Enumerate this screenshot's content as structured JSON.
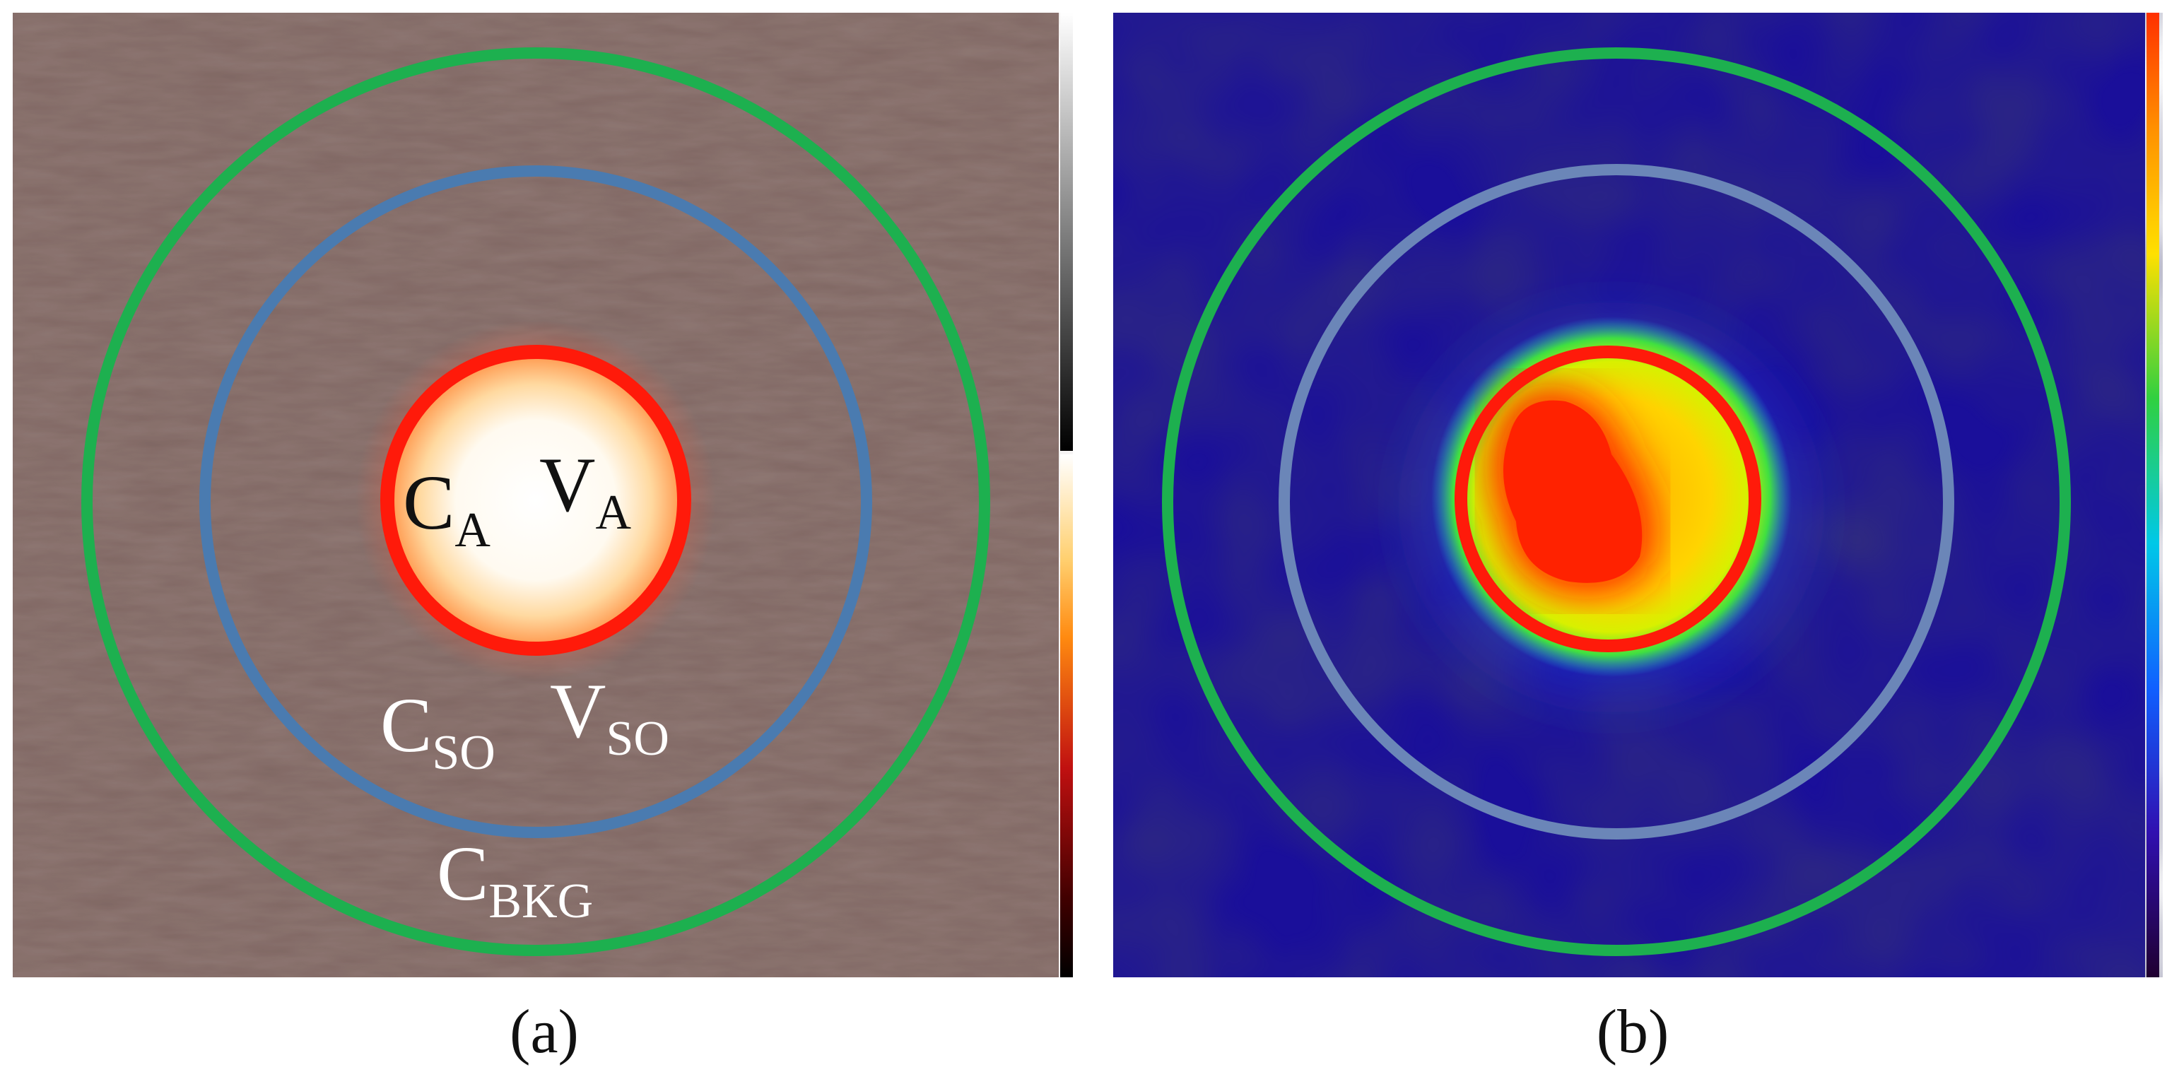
{
  "panel_a": {
    "caption": "(a)",
    "labels": {
      "ca_main": "C",
      "ca_sub": "A",
      "va_main": "V",
      "va_sub": "A",
      "cso_main": "C",
      "cso_sub": "SO",
      "vso_main": "V",
      "vso_sub": "SO",
      "cbkg_main": "C",
      "cbkg_sub": "BKG"
    },
    "colors": {
      "background": "#7a6763",
      "outer_ring": "#1db04f",
      "middle_ring": "#4a7bb0",
      "inner_ring": "#ff1a0a",
      "hot_center": "#ffffff"
    }
  },
  "panel_b": {
    "caption": "(b)",
    "colors": {
      "background": "#1a0f9a",
      "outer_ring": "#1db04f",
      "middle_ring": "#6b86b8",
      "inner_ring": "#ff1a0a",
      "hot_center": "#ff2200"
    }
  }
}
